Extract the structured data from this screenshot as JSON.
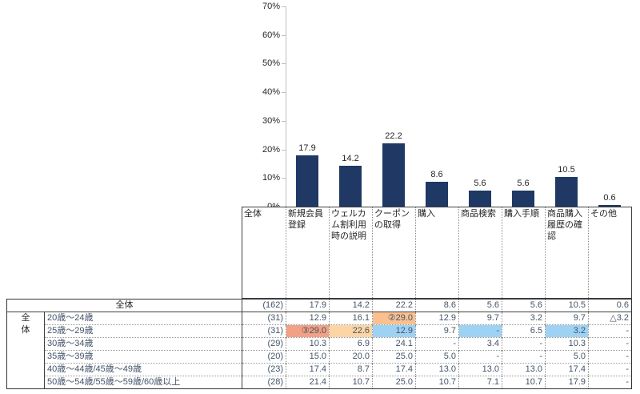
{
  "chart_data": {
    "type": "bar",
    "title": "",
    "categories": [
      "新規会員登録",
      "ウェルカム割利用時の説明",
      "クーポンの取得",
      "購入",
      "商品検索",
      "購入手順",
      "商品購入履歴の確認",
      "その他"
    ],
    "values": [
      17.9,
      14.2,
      22.2,
      8.6,
      5.6,
      5.6,
      10.5,
      0.6
    ],
    "value_labels": [
      "17.9",
      "14.2",
      "22.2",
      "8.6",
      "5.6",
      "5.6",
      "10.5",
      "0.6"
    ],
    "xlabel": "",
    "ylabel": "",
    "ylim": [
      0,
      70
    ],
    "yticks": [
      "70%",
      "60%",
      "50%",
      "40%",
      "30%",
      "20%",
      "10%",
      "0%"
    ],
    "grid": false,
    "legend": false,
    "bar_color": "#1f3864"
  },
  "table": {
    "corner_header": "全体",
    "columns": [
      "新規会員登録",
      "ウェルカム割利用時の説明",
      "クーポンの取得",
      "購入",
      "商品検索",
      "購入手順",
      "商品購入履歴の確認",
      "その他"
    ],
    "group_label": "全体",
    "highlight_colors": {
      "orange": "#FAC08F",
      "salmon": "#F2A184",
      "peach": "#FCD5A4",
      "blue": "#9DD2F2"
    },
    "rows": [
      {
        "label": "全体",
        "n": "(162)",
        "values": [
          "17.9",
          "14.2",
          "22.2",
          "8.6",
          "5.6",
          "5.6",
          "10.5",
          "0.6"
        ],
        "highlights": [
          null,
          null,
          null,
          null,
          null,
          null,
          null,
          null
        ]
      },
      {
        "label": "20歳～24歳",
        "n": "(31)",
        "values": [
          "12.9",
          "16.1",
          "②29.0",
          "12.9",
          "9.7",
          "3.2",
          "9.7",
          "△3.2"
        ],
        "highlights": [
          null,
          null,
          "orange",
          null,
          null,
          null,
          null,
          null
        ]
      },
      {
        "label": "25歳～29歳",
        "n": "(31)",
        "values": [
          "③29.0",
          "22.6",
          "12.9",
          "9.7",
          "-",
          "6.5",
          "3.2",
          "-"
        ],
        "highlights": [
          "salmon",
          "peach",
          "blue",
          null,
          "blue",
          null,
          "blue",
          null
        ]
      },
      {
        "label": "30歳～34歳",
        "n": "(29)",
        "values": [
          "10.3",
          "6.9",
          "24.1",
          "-",
          "3.4",
          "-",
          "10.3",
          "-"
        ],
        "highlights": [
          null,
          null,
          null,
          null,
          null,
          null,
          null,
          null
        ]
      },
      {
        "label": "35歳～39歳",
        "n": "(20)",
        "values": [
          "15.0",
          "20.0",
          "25.0",
          "5.0",
          "-",
          "-",
          "5.0",
          "-"
        ],
        "highlights": [
          null,
          null,
          null,
          null,
          null,
          null,
          null,
          null
        ]
      },
      {
        "label": "40歳～44歳/45歳～49歳",
        "n": "(23)",
        "values": [
          "17.4",
          "8.7",
          "17.4",
          "13.0",
          "13.0",
          "13.0",
          "17.4",
          "-"
        ],
        "highlights": [
          null,
          null,
          null,
          null,
          null,
          null,
          null,
          null
        ]
      },
      {
        "label": "50歳～54歳/55歳～59歳/60歳以上",
        "n": "(28)",
        "values": [
          "21.4",
          "10.7",
          "25.0",
          "10.7",
          "7.1",
          "10.7",
          "17.9",
          "-"
        ],
        "highlights": [
          null,
          null,
          null,
          null,
          null,
          null,
          null,
          null
        ]
      }
    ]
  }
}
